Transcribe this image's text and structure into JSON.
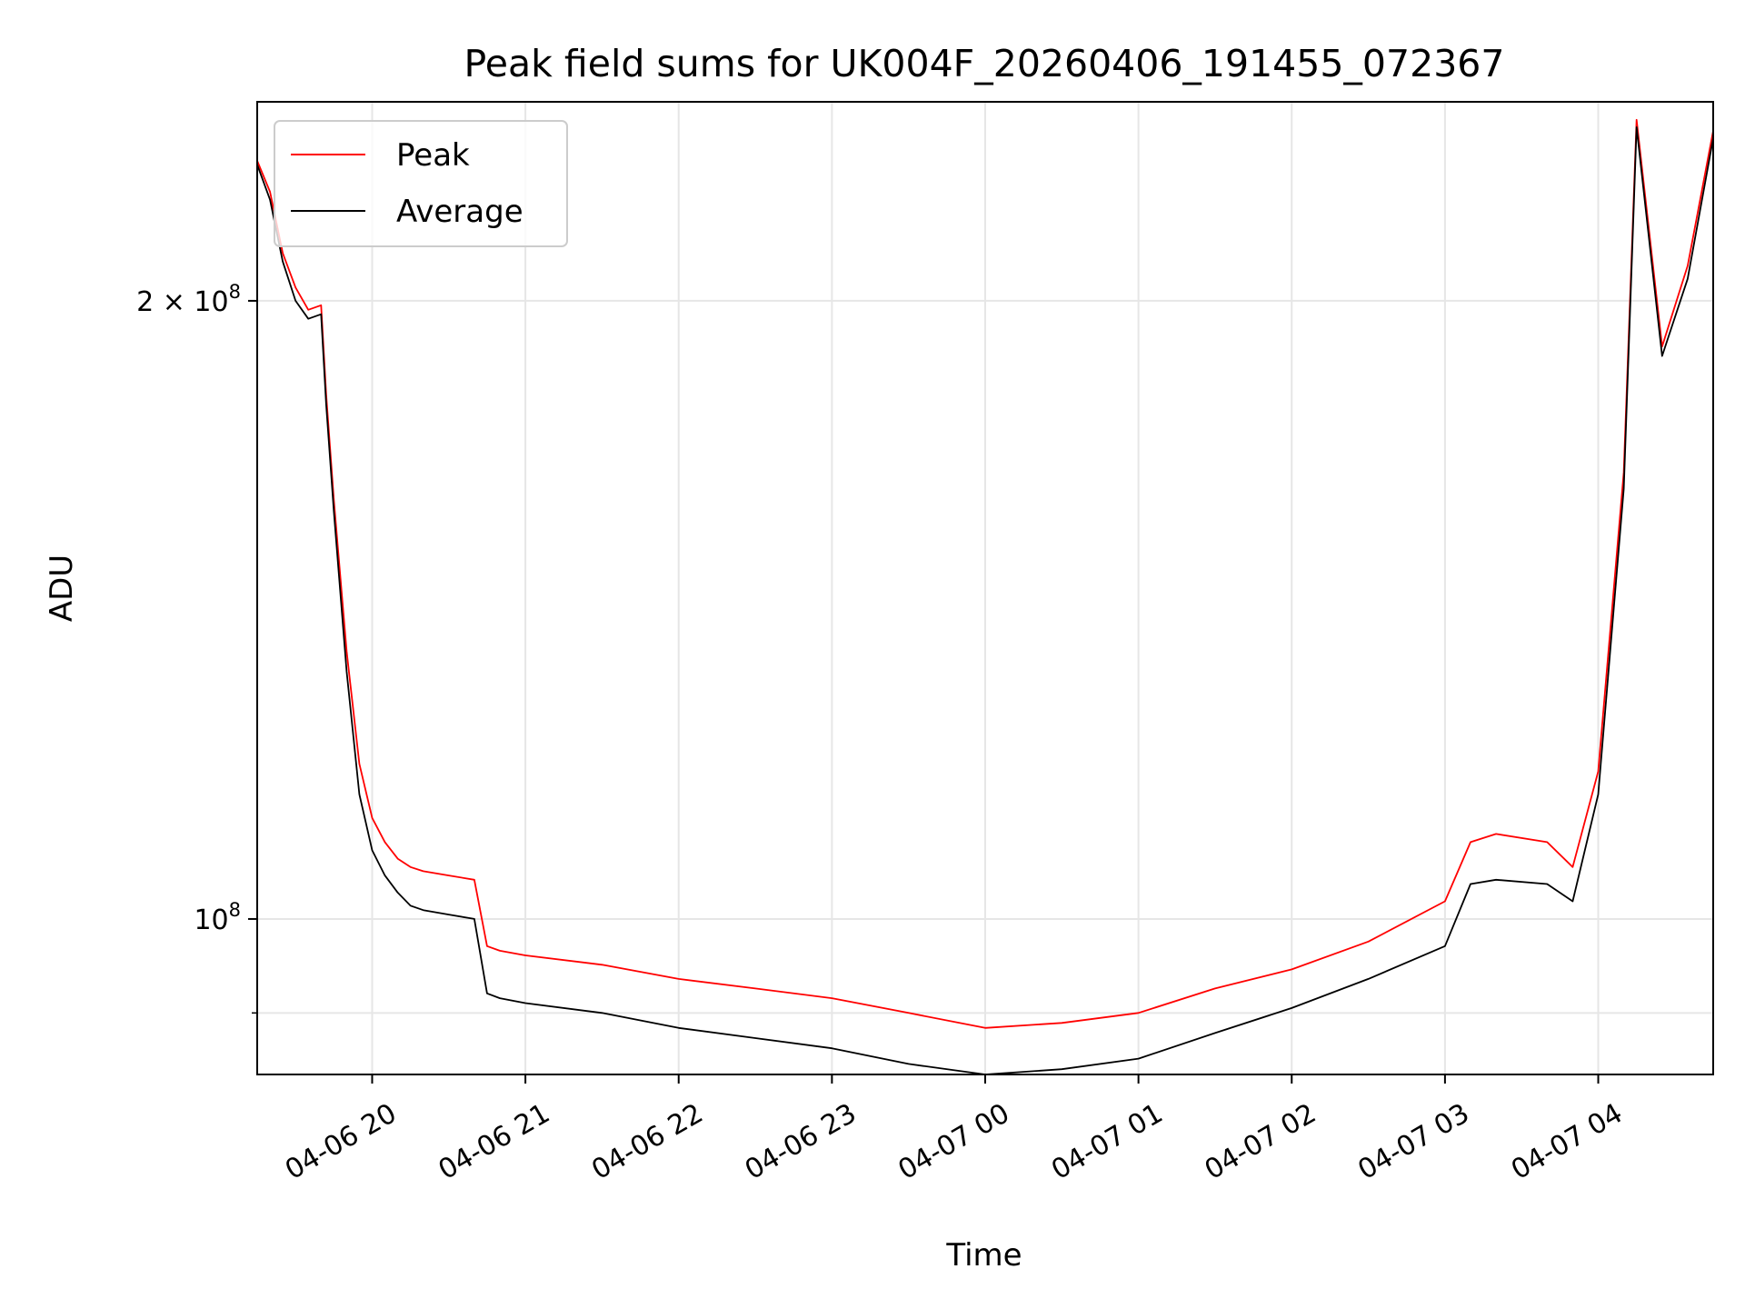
{
  "chart_data": {
    "type": "line",
    "title": "Peak field sums for UK004F_20260406_191455_072367",
    "xlabel": "Time",
    "ylabel": "ADU",
    "yscale": "log",
    "grid": true,
    "legend_position": "top-left",
    "xlim": [
      "2026-04-06 19:15",
      "2026-04-07 04:45"
    ],
    "ylim": [
      84000000,
      250000000
    ],
    "x_tick_labels": [
      "04-06 20",
      "04-06 21",
      "04-06 22",
      "04-06 23",
      "04-07 00",
      "04-07 01",
      "04-07 02",
      "04-07 03",
      "04-07 04"
    ],
    "x_ticks": [
      "2026-04-06 20:00",
      "2026-04-06 21:00",
      "2026-04-06 22:00",
      "2026-04-06 23:00",
      "2026-04-07 00:00",
      "2026-04-07 01:00",
      "2026-04-07 02:00",
      "2026-04-07 03:00",
      "2026-04-07 04:00"
    ],
    "y_ticks": [
      {
        "value": 100000000,
        "label_base": "10",
        "label_exp": "8",
        "label_prefix": ""
      },
      {
        "value": 200000000,
        "label_base": "10",
        "label_exp": "8",
        "label_prefix": "2 × "
      }
    ],
    "series": [
      {
        "name": "Peak",
        "color": "#ff0000",
        "x": [
          "2026-04-06 19:15",
          "2026-04-06 19:20",
          "2026-04-06 19:25",
          "2026-04-06 19:30",
          "2026-04-06 19:35",
          "2026-04-06 19:40",
          "2026-04-06 19:42",
          "2026-04-06 19:45",
          "2026-04-06 19:50",
          "2026-04-06 19:55",
          "2026-04-06 20:00",
          "2026-04-06 20:05",
          "2026-04-06 20:10",
          "2026-04-06 20:15",
          "2026-04-06 20:20",
          "2026-04-06 20:30",
          "2026-04-06 20:40",
          "2026-04-06 20:45",
          "2026-04-06 20:50",
          "2026-04-06 21:00",
          "2026-04-06 21:30",
          "2026-04-06 22:00",
          "2026-04-06 22:30",
          "2026-04-06 23:00",
          "2026-04-06 23:30",
          "2026-04-07 00:00",
          "2026-04-07 00:30",
          "2026-04-07 01:00",
          "2026-04-07 01:30",
          "2026-04-07 02:00",
          "2026-04-07 02:30",
          "2026-04-07 03:00",
          "2026-04-07 03:10",
          "2026-04-07 03:20",
          "2026-04-07 03:40",
          "2026-04-07 03:50",
          "2026-04-07 04:00",
          "2026-04-07 04:10",
          "2026-04-07 04:15",
          "2026-04-07 04:25",
          "2026-04-07 04:35",
          "2026-04-07 04:45"
        ],
        "y": [
          234000000,
          226000000,
          211000000,
          203000000,
          198000000,
          199000000,
          180000000,
          160000000,
          135000000,
          119000000,
          112000000,
          109000000,
          107000000,
          106000000,
          105500000,
          105000000,
          104500000,
          97000000,
          96500000,
          96000000,
          95000000,
          93500000,
          92500000,
          91500000,
          90000000,
          88500000,
          89000000,
          90000000,
          92500000,
          94500000,
          97500000,
          102000000,
          109000000,
          110000000,
          109000000,
          106000000,
          118000000,
          165000000,
          245000000,
          190000000,
          208000000,
          242000000
        ]
      },
      {
        "name": "Average",
        "color": "#000000",
        "x": [
          "2026-04-06 19:15",
          "2026-04-06 19:20",
          "2026-04-06 19:25",
          "2026-04-06 19:30",
          "2026-04-06 19:35",
          "2026-04-06 19:40",
          "2026-04-06 19:42",
          "2026-04-06 19:45",
          "2026-04-06 19:50",
          "2026-04-06 19:55",
          "2026-04-06 20:00",
          "2026-04-06 20:05",
          "2026-04-06 20:10",
          "2026-04-06 20:15",
          "2026-04-06 20:20",
          "2026-04-06 20:30",
          "2026-04-06 20:40",
          "2026-04-06 20:45",
          "2026-04-06 20:50",
          "2026-04-06 21:00",
          "2026-04-06 21:30",
          "2026-04-06 22:00",
          "2026-04-06 22:30",
          "2026-04-06 23:00",
          "2026-04-06 23:30",
          "2026-04-07 00:00",
          "2026-04-07 00:30",
          "2026-04-07 01:00",
          "2026-04-07 01:30",
          "2026-04-07 02:00",
          "2026-04-07 02:30",
          "2026-04-07 03:00",
          "2026-04-07 03:10",
          "2026-04-07 03:20",
          "2026-04-07 03:40",
          "2026-04-07 03:50",
          "2026-04-07 04:00",
          "2026-04-07 04:10",
          "2026-04-07 04:15",
          "2026-04-07 04:25",
          "2026-04-07 04:35",
          "2026-04-07 04:45"
        ],
        "y": [
          233000000,
          224000000,
          209000000,
          200000000,
          196000000,
          197000000,
          178000000,
          158000000,
          132000000,
          115000000,
          108000000,
          105000000,
          103000000,
          101500000,
          101000000,
          100500000,
          100000000,
          92000000,
          91500000,
          91000000,
          90000000,
          88500000,
          87500000,
          86500000,
          85000000,
          84000000,
          84500000,
          85500000,
          88000000,
          90500000,
          93500000,
          97000000,
          104000000,
          104500000,
          104000000,
          102000000,
          115000000,
          162000000,
          243000000,
          188000000,
          205000000,
          240000000
        ]
      }
    ]
  }
}
